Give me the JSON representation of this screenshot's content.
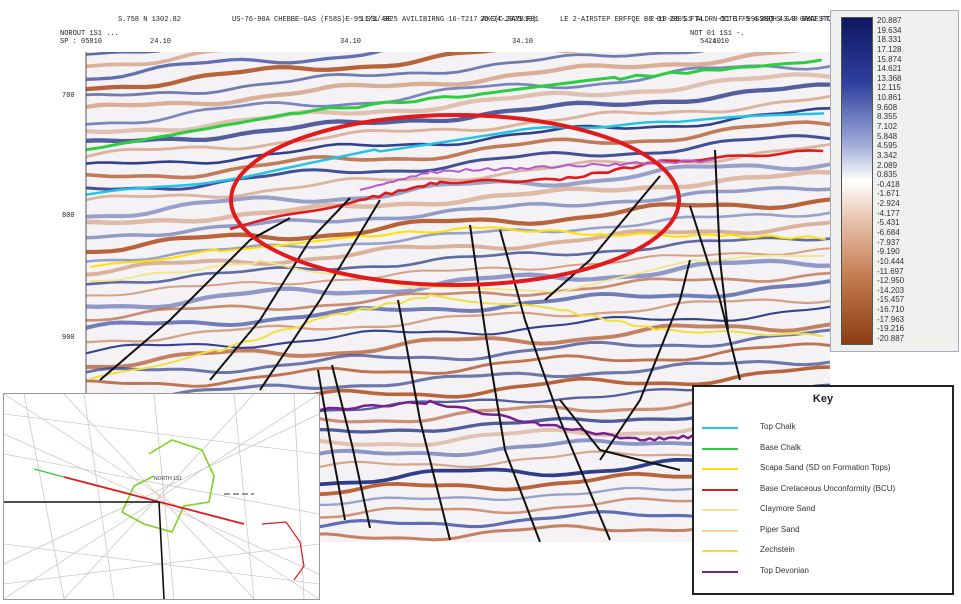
{
  "header": {
    "labels": [
      "S.758 N 1302.82",
      "US-76-90A CHEBBE-GAS (F58S)E-95 SSL 0E",
      "11/1/4025 AVILIBIRNG 16-T217 AXE(C.3A7B10)",
      "25-24-2025 F01",
      "LE 2-AIRSTEP ERFFQE B8 01 2005 FT4",
      "2-18-05 S1 ALDRN-S1 1F-99SS",
      "OCTE 75 4 40T 43.3 0AM2 FTALE",
      "28QHS S48 BKAESTO1 V4SS88"
    ],
    "sub_labels": [
      "NOROUT 1S1 ...",
      "SP : 05810",
      "24.10",
      "34.10",
      "34.10",
      "24.10",
      "NOT 01 1S1 -.",
      "54.10"
    ]
  },
  "chart_data": {
    "type": "seismic-section",
    "y_ticks": [
      "700",
      "800",
      "900"
    ],
    "colorbar": {
      "min": -20.887,
      "max": 20.887,
      "labels": [
        "20.887",
        "19.634",
        "18.331",
        "17.128",
        "15.874",
        "14.621",
        "13.368",
        "12.115",
        "10.861",
        "9.608",
        "8.355",
        "7.102",
        "5.848",
        "4.595",
        "3.342",
        "2.089",
        "0.835",
        "-0.418",
        "-1.671",
        "-2.924",
        "-4.177",
        "-5.431",
        "-6.684",
        "-7.937",
        "-9.190",
        "-10.444",
        "-11.697",
        "-12.950",
        "-14.203",
        "-15.457",
        "-16.710",
        "-17.963",
        "-19.216",
        "-20.887"
      ]
    },
    "key_title": "Key",
    "legend": [
      {
        "name": "Top Chalk",
        "color": "#22c3e6"
      },
      {
        "name": "Base Chalk",
        "color": "#2ecc40"
      },
      {
        "name": "Scapa Sand (SD on Formation Tops)",
        "color": "#ffe100"
      },
      {
        "name": "Base Cretaceous Unconformity (BCU)",
        "color": "#e31a1c"
      },
      {
        "name": "Claymore Sand",
        "color": "#f3e68a"
      },
      {
        "name": "Piper Sand",
        "color": "#f5cfa0"
      },
      {
        "name": "Zechstein",
        "color": "#f0e040"
      },
      {
        "name": "Top Devonian",
        "color": "#7a1f8f"
      }
    ],
    "annotation": "red-ellipse"
  },
  "basemap": {
    "label": "NORTH 1S1"
  },
  "colors": {
    "positive": "#1a2a7a",
    "negative": "#b8552a",
    "ellipse": "#e31a1c",
    "fault": "#111111"
  }
}
